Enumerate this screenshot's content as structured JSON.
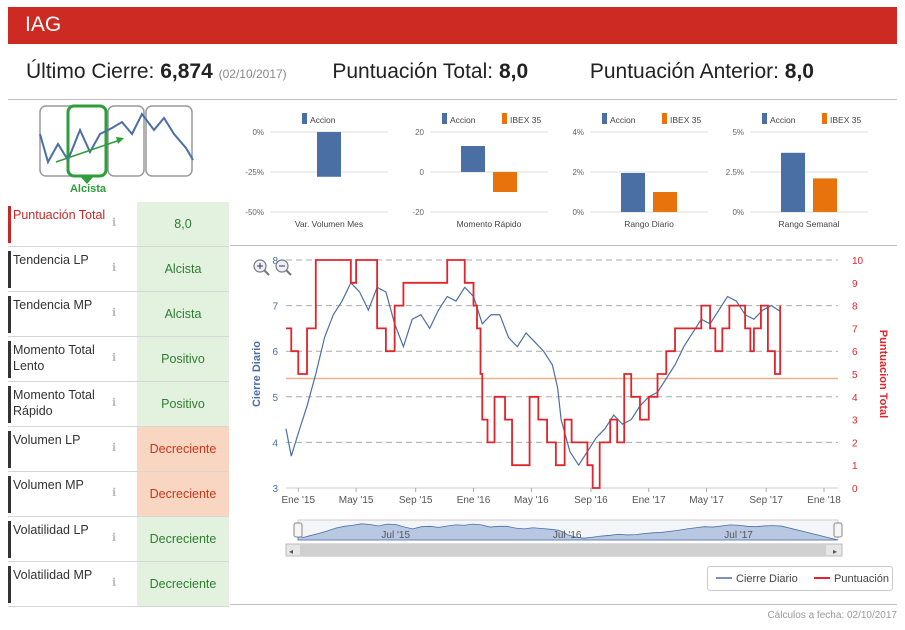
{
  "header": {
    "title": "IAG"
  },
  "summary": {
    "last_close_label": "Último Cierre:",
    "last_close_value": "6,874",
    "last_close_date": "(02/10/2017)",
    "total_score_label": "Puntuación Total:",
    "total_score_value": "8,0",
    "prev_score_label": "Puntuación Anterior:",
    "prev_score_value": "8,0"
  },
  "trend_widget": {
    "label": "Alcista"
  },
  "rows": [
    {
      "label": "Puntuación Total",
      "value": "8,0",
      "tone": "green",
      "highlight": true
    },
    {
      "label": "Tendencia LP",
      "value": "Alcista",
      "tone": "green"
    },
    {
      "label": "Tendencia MP",
      "value": "Alcista",
      "tone": "green"
    },
    {
      "label": "Momento Total Lento",
      "value": "Positivo",
      "tone": "green"
    },
    {
      "label": "Momento Total Rápido",
      "value": "Positivo",
      "tone": "green"
    },
    {
      "label": "Volumen LP",
      "value": "Decreciente",
      "tone": "orange"
    },
    {
      "label": "Volumen MP",
      "value": "Decreciente",
      "tone": "orange"
    },
    {
      "label": "Volatilidad LP",
      "value": "Decreciente",
      "tone": "green"
    },
    {
      "label": "Volatilidad MP",
      "value": "Decreciente",
      "tone": "green"
    }
  ],
  "colors": {
    "accion": "#4a6fa5",
    "ibex": "#e8720c",
    "price": "#4a6fa5",
    "score": "#e0242a",
    "header": "#cc2a22"
  },
  "chart_data": [
    {
      "type": "bar",
      "title": "Var. Volumen Mes",
      "legend": [
        "Accion"
      ],
      "categories": [
        "Var. Volumen Mes"
      ],
      "series": [
        {
          "name": "Accion",
          "values": [
            -28
          ]
        }
      ],
      "yticks": [
        "0%",
        "-25%",
        "-50%"
      ],
      "ylim": [
        -50,
        0
      ]
    },
    {
      "type": "bar",
      "title": "Momento Rápido",
      "legend": [
        "Accion",
        "IBEX 35"
      ],
      "categories": [
        "Momento Rápido"
      ],
      "series": [
        {
          "name": "Accion",
          "values": [
            13
          ]
        },
        {
          "name": "IBEX 35",
          "values": [
            -10
          ]
        }
      ],
      "yticks": [
        "20",
        "0",
        "-20"
      ],
      "ylim": [
        -20,
        20
      ]
    },
    {
      "type": "bar",
      "title": "Rango Diario",
      "legend": [
        "Accion",
        "IBEX 35"
      ],
      "categories": [
        "Rango Diario"
      ],
      "series": [
        {
          "name": "Accion",
          "values": [
            1.95
          ]
        },
        {
          "name": "IBEX 35",
          "values": [
            1.0
          ]
        }
      ],
      "yticks": [
        "4%",
        "2%",
        "0%"
      ],
      "ylim": [
        0,
        4
      ]
    },
    {
      "type": "bar",
      "title": "Rango Semanal",
      "legend": [
        "Accion",
        "IBEX 35"
      ],
      "categories": [
        "Rango Semanal"
      ],
      "series": [
        {
          "name": "Accion",
          "values": [
            3.7
          ]
        },
        {
          "name": "IBEX 35",
          "values": [
            2.1
          ]
        }
      ],
      "yticks": [
        "5%",
        "2.5%",
        "0%"
      ],
      "ylim": [
        0,
        5
      ]
    },
    {
      "type": "line",
      "title": "",
      "ylabel": "Cierre Diario",
      "y2label": "Puntuacion Total",
      "ylim": [
        3,
        8
      ],
      "y2lim": [
        0,
        10
      ],
      "yticks": [
        3,
        4,
        5,
        6,
        7,
        8
      ],
      "y2ticks": [
        0,
        1,
        2,
        3,
        4,
        5,
        6,
        7,
        8,
        9,
        10
      ],
      "xlim": [
        2014.93,
        2018.08
      ],
      "xticks": [
        {
          "label": "Ene '15",
          "x": 2015.0
        },
        {
          "label": "May '15",
          "x": 2015.33
        },
        {
          "label": "Sep '15",
          "x": 2015.67
        },
        {
          "label": "Ene '16",
          "x": 2016.0
        },
        {
          "label": "May '16",
          "x": 2016.33
        },
        {
          "label": "Sep '16",
          "x": 2016.67
        },
        {
          "label": "Ene '17",
          "x": 2017.0
        },
        {
          "label": "May '17",
          "x": 2017.33
        },
        {
          "label": "Sep '17",
          "x": 2017.67
        },
        {
          "label": "Ene '18",
          "x": 2018.0
        }
      ],
      "reference_line_y2": 4.8,
      "navigator_labels": [
        "Jul '15",
        "Jul '16",
        "Jul '17"
      ],
      "series": [
        {
          "name": "Cierre Diario",
          "axis": "left",
          "x": [
            2014.93,
            2014.96,
            2015.0,
            2015.05,
            2015.1,
            2015.15,
            2015.2,
            2015.25,
            2015.3,
            2015.35,
            2015.4,
            2015.45,
            2015.5,
            2015.55,
            2015.6,
            2015.65,
            2015.7,
            2015.75,
            2015.8,
            2015.85,
            2015.9,
            2015.95,
            2016.0,
            2016.05,
            2016.1,
            2016.15,
            2016.2,
            2016.25,
            2016.3,
            2016.35,
            2016.4,
            2016.45,
            2016.48,
            2016.5,
            2016.55,
            2016.6,
            2016.65,
            2016.7,
            2016.75,
            2016.8,
            2016.85,
            2016.9,
            2016.95,
            2017.0,
            2017.05,
            2017.1,
            2017.15,
            2017.2,
            2017.25,
            2017.3,
            2017.35,
            2017.4,
            2017.45,
            2017.5,
            2017.55,
            2017.6,
            2017.65,
            2017.7,
            2017.75
          ],
          "values": [
            4.3,
            3.7,
            4.2,
            4.8,
            5.5,
            6.3,
            6.8,
            7.1,
            7.5,
            7.3,
            6.9,
            7.4,
            7.3,
            6.6,
            6.1,
            6.7,
            6.8,
            6.5,
            6.9,
            7.2,
            7.1,
            7.4,
            7.2,
            6.6,
            6.8,
            6.8,
            6.3,
            6.1,
            6.4,
            6.2,
            6.0,
            5.7,
            5.2,
            4.5,
            3.8,
            3.5,
            3.8,
            4.1,
            4.3,
            4.6,
            4.4,
            4.5,
            4.8,
            5.0,
            5.1,
            5.4,
            5.7,
            6.1,
            6.4,
            6.7,
            6.6,
            6.9,
            7.2,
            7.1,
            6.8,
            6.7,
            6.9,
            7.0,
            6.874
          ]
        },
        {
          "name": "Puntuación",
          "axis": "right",
          "x": [
            2014.93,
            2014.96,
            2015.0,
            2015.05,
            2015.1,
            2015.12,
            2015.2,
            2015.3,
            2015.33,
            2015.43,
            2015.45,
            2015.5,
            2015.55,
            2015.6,
            2015.65,
            2015.75,
            2015.85,
            2015.9,
            2015.95,
            2016.0,
            2016.02,
            2016.04,
            2016.05,
            2016.08,
            2016.12,
            2016.18,
            2016.22,
            2016.27,
            2016.32,
            2016.37,
            2016.42,
            2016.47,
            2016.52,
            2016.56,
            2016.62,
            2016.65,
            2016.68,
            2016.72,
            2016.78,
            2016.82,
            2016.86,
            2016.9,
            2016.95,
            2017.0,
            2017.05,
            2017.1,
            2017.15,
            2017.2,
            2017.25,
            2017.3,
            2017.35,
            2017.38,
            2017.42,
            2017.46,
            2017.5,
            2017.55,
            2017.58,
            2017.6,
            2017.64,
            2017.68,
            2017.72,
            2017.75
          ],
          "values": [
            7,
            6,
            5,
            7,
            10,
            10,
            10,
            9,
            10,
            10,
            7,
            6,
            8,
            9,
            9,
            9,
            10,
            10,
            9,
            8,
            7,
            5,
            3,
            2,
            4,
            3,
            1,
            1,
            4,
            3,
            2,
            1,
            3,
            2,
            2,
            1,
            0,
            2,
            3,
            2,
            5,
            4,
            3,
            4,
            5,
            6,
            7,
            7,
            7,
            8,
            7,
            6,
            7,
            8,
            8,
            7,
            6,
            7,
            8,
            6,
            5,
            8
          ]
        }
      ]
    }
  ],
  "legend": {
    "price": "Cierre Diario",
    "score": "Puntuación"
  },
  "footer": {
    "text": "Cálculos a fecha: 02/10/2017"
  }
}
